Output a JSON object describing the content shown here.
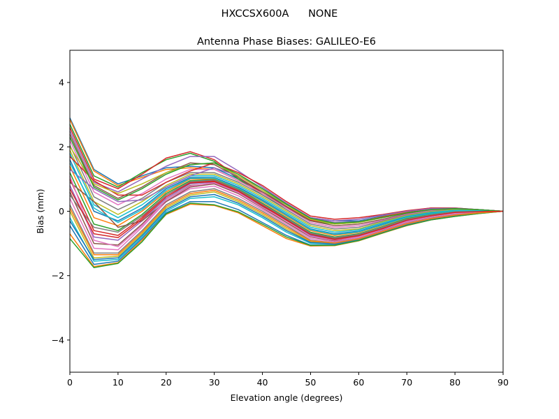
{
  "suptitle": "HXCCSX600A      NONE",
  "chart_data": {
    "type": "line",
    "title": "Antenna Phase Biases: GALILEO-E6",
    "xlabel": "Elevation angle (degrees)",
    "ylabel": "Bias (mm)",
    "xlim": [
      0,
      90
    ],
    "ylim": [
      -5,
      5
    ],
    "x": [
      0,
      5,
      10,
      15,
      20,
      25,
      30,
      35,
      40,
      45,
      50,
      55,
      60,
      65,
      70,
      75,
      80,
      85,
      90
    ],
    "x_ticks": [
      0,
      10,
      20,
      30,
      40,
      50,
      60,
      70,
      80,
      90
    ],
    "y_ticks": [
      -4,
      -2,
      0,
      2,
      4
    ],
    "x_tick_labels": [
      "0",
      "10",
      "20",
      "30",
      "40",
      "50",
      "60",
      "70",
      "80",
      "90"
    ],
    "y_tick_labels": [
      "−4",
      "−2",
      "0",
      "2",
      "4"
    ],
    "grid": false,
    "palette": [
      "#1f77b4",
      "#ff7f0e",
      "#2ca02c",
      "#d62728",
      "#9467bd",
      "#8c564b",
      "#e377c2",
      "#7f7f7f",
      "#bcbd22",
      "#17becf"
    ],
    "series": [
      {
        "values": [
          2.9,
          1.3,
          0.85,
          1.1,
          1.35,
          1.4,
          1.35,
          1.0,
          0.6,
          0.2,
          -0.2,
          -0.3,
          -0.3,
          -0.15,
          0.0,
          0.1,
          0.1,
          0.05,
          0.0
        ]
      },
      {
        "values": [
          2.85,
          1.25,
          0.8,
          1.05,
          1.3,
          1.35,
          1.3,
          0.95,
          0.55,
          0.15,
          -0.25,
          -0.35,
          -0.33,
          -0.17,
          -0.02,
          0.08,
          0.09,
          0.05,
          0.0
        ]
      },
      {
        "values": [
          2.7,
          1.1,
          0.75,
          1.2,
          1.6,
          1.8,
          1.55,
          1.0,
          0.5,
          0.1,
          -0.3,
          -0.4,
          -0.35,
          -0.2,
          -0.05,
          0.05,
          0.08,
          0.05,
          0.0
        ]
      },
      {
        "values": [
          2.6,
          1.0,
          0.7,
          1.15,
          1.65,
          1.85,
          1.6,
          1.05,
          0.55,
          0.12,
          -0.28,
          -0.38,
          -0.34,
          -0.18,
          -0.04,
          0.06,
          0.08,
          0.05,
          0.0
        ]
      },
      {
        "values": [
          2.5,
          0.9,
          0.6,
          1.0,
          1.4,
          1.7,
          1.7,
          1.25,
          0.75,
          0.25,
          -0.2,
          -0.35,
          -0.32,
          -0.2,
          -0.06,
          0.05,
          0.08,
          0.05,
          0.0
        ]
      },
      {
        "values": [
          2.4,
          0.8,
          0.4,
          0.75,
          1.2,
          1.5,
          1.45,
          1.05,
          0.6,
          0.15,
          -0.3,
          -0.45,
          -0.4,
          -0.25,
          -0.08,
          0.04,
          0.07,
          0.04,
          0.0
        ]
      },
      {
        "values": [
          2.2,
          0.6,
          0.2,
          0.55,
          1.0,
          1.3,
          1.3,
          0.95,
          0.55,
          0.1,
          -0.35,
          -0.5,
          -0.45,
          -0.28,
          -0.1,
          0.02,
          0.06,
          0.04,
          0.0
        ]
      },
      {
        "values": [
          2.05,
          0.45,
          0.05,
          0.4,
          0.9,
          1.2,
          1.2,
          0.9,
          0.5,
          0.05,
          -0.4,
          -0.55,
          -0.5,
          -0.3,
          -0.12,
          0.0,
          0.05,
          0.03,
          0.0
        ]
      },
      {
        "values": [
          1.9,
          0.3,
          -0.1,
          0.3,
          0.8,
          1.15,
          1.15,
          0.85,
          0.45,
          0.0,
          -0.45,
          -0.6,
          -0.55,
          -0.33,
          -0.14,
          -0.02,
          0.04,
          0.03,
          0.0
        ]
      },
      {
        "values": [
          1.8,
          0.2,
          -0.2,
          0.2,
          0.75,
          1.1,
          1.1,
          0.8,
          0.4,
          -0.05,
          -0.5,
          -0.65,
          -0.58,
          -0.36,
          -0.16,
          -0.04,
          0.03,
          0.02,
          0.0
        ]
      },
      {
        "values": [
          1.6,
          0.0,
          -0.3,
          0.1,
          0.7,
          1.05,
          1.05,
          0.75,
          0.35,
          -0.1,
          -0.55,
          -0.7,
          -0.62,
          -0.4,
          -0.18,
          -0.06,
          0.02,
          0.02,
          0.0
        ]
      },
      {
        "values": [
          1.4,
          -0.2,
          -0.45,
          0.0,
          0.6,
          1.0,
          1.0,
          0.7,
          0.3,
          -0.15,
          -0.6,
          -0.75,
          -0.66,
          -0.44,
          -0.2,
          -0.08,
          0.01,
          0.01,
          0.0
        ]
      },
      {
        "values": [
          1.2,
          -0.4,
          -0.6,
          -0.1,
          0.55,
          0.95,
          0.98,
          0.68,
          0.25,
          -0.2,
          -0.65,
          -0.8,
          -0.7,
          -0.48,
          -0.23,
          -0.1,
          0.0,
          0.01,
          0.0
        ]
      },
      {
        "values": [
          1.0,
          -0.6,
          -0.75,
          -0.2,
          0.5,
          0.9,
          0.95,
          0.65,
          0.2,
          -0.25,
          -0.7,
          -0.85,
          -0.74,
          -0.52,
          -0.26,
          -0.12,
          -0.02,
          0.0,
          0.0
        ]
      },
      {
        "values": [
          0.8,
          -0.8,
          -0.9,
          -0.3,
          0.4,
          0.85,
          0.9,
          0.6,
          0.15,
          -0.3,
          -0.75,
          -0.9,
          -0.78,
          -0.55,
          -0.3,
          -0.15,
          -0.05,
          -0.01,
          0.0
        ]
      },
      {
        "values": [
          0.6,
          -1.0,
          -1.05,
          -0.4,
          0.35,
          0.8,
          0.85,
          0.55,
          0.1,
          -0.35,
          -0.8,
          -0.92,
          -0.8,
          -0.58,
          -0.33,
          -0.17,
          -0.07,
          -0.02,
          0.0
        ]
      },
      {
        "values": [
          0.4,
          -1.15,
          -1.2,
          -0.5,
          0.3,
          0.7,
          0.78,
          0.48,
          0.05,
          -0.4,
          -0.85,
          -0.95,
          -0.83,
          -0.6,
          -0.36,
          -0.2,
          -0.09,
          -0.03,
          0.0
        ]
      },
      {
        "values": [
          0.2,
          -1.3,
          -1.3,
          -0.6,
          0.2,
          0.6,
          0.7,
          0.4,
          0.0,
          -0.45,
          -0.9,
          -0.98,
          -0.85,
          -0.62,
          -0.38,
          -0.22,
          -0.11,
          -0.04,
          0.0
        ]
      },
      {
        "values": [
          0.0,
          -1.45,
          -1.4,
          -0.7,
          0.1,
          0.5,
          0.6,
          0.3,
          -0.1,
          -0.55,
          -0.95,
          -1.0,
          -0.87,
          -0.64,
          -0.4,
          -0.24,
          -0.13,
          -0.05,
          0.0
        ]
      },
      {
        "values": [
          -0.2,
          -1.55,
          -1.5,
          -0.8,
          0.0,
          0.4,
          0.45,
          0.2,
          -0.2,
          -0.65,
          -1.0,
          -1.02,
          -0.88,
          -0.65,
          -0.42,
          -0.25,
          -0.14,
          -0.06,
          0.0
        ]
      },
      {
        "values": [
          -0.45,
          -1.65,
          -1.55,
          -0.85,
          -0.05,
          0.3,
          0.3,
          0.05,
          -0.35,
          -0.75,
          -1.05,
          -1.05,
          -0.9,
          -0.66,
          -0.43,
          -0.26,
          -0.15,
          -0.06,
          0.0
        ]
      },
      {
        "values": [
          -0.7,
          -1.72,
          -1.6,
          -0.9,
          -0.1,
          0.22,
          0.18,
          -0.05,
          -0.45,
          -0.85,
          -1.08,
          -1.07,
          -0.92,
          -0.68,
          -0.45,
          -0.27,
          -0.16,
          -0.07,
          0.0
        ]
      },
      {
        "values": [
          -0.85,
          -1.75,
          -1.62,
          -0.95,
          -0.08,
          0.25,
          0.2,
          -0.02,
          -0.4,
          -0.8,
          -1.06,
          -1.06,
          -0.91,
          -0.67,
          -0.44,
          -0.27,
          -0.16,
          -0.07,
          0.0
        ]
      },
      {
        "values": [
          1.7,
          0.95,
          0.5,
          0.5,
          0.9,
          1.25,
          1.5,
          1.2,
          0.8,
          0.3,
          -0.15,
          -0.25,
          -0.2,
          -0.1,
          0.02,
          0.1,
          0.1,
          0.05,
          0.0
        ]
      },
      {
        "values": [
          1.3,
          0.7,
          0.3,
          0.35,
          0.75,
          1.1,
          1.35,
          1.1,
          0.7,
          0.25,
          -0.2,
          -0.3,
          -0.25,
          -0.12,
          0.0,
          0.08,
          0.09,
          0.05,
          0.0
        ]
      },
      {
        "values": [
          0.9,
          0.3,
          -0.5,
          -0.3,
          0.3,
          0.75,
          0.85,
          0.55,
          0.15,
          -0.25,
          -0.7,
          -0.85,
          -0.72,
          -0.5,
          -0.27,
          -0.13,
          -0.04,
          -0.01,
          0.0
        ]
      },
      {
        "values": [
          1.1,
          -0.9,
          -1.1,
          -0.45,
          0.35,
          0.78,
          0.88,
          0.58,
          0.12,
          -0.3,
          -0.78,
          -0.9,
          -0.8,
          -0.56,
          -0.32,
          -0.16,
          -0.06,
          -0.02,
          0.0
        ]
      },
      {
        "values": [
          0.5,
          -0.5,
          -0.65,
          -0.15,
          0.5,
          0.92,
          0.97,
          0.67,
          0.22,
          -0.22,
          -0.68,
          -0.82,
          -0.72,
          -0.5,
          -0.25,
          -0.11,
          -0.01,
          0.0,
          0.0
        ]
      },
      {
        "values": [
          2.0,
          0.85,
          0.55,
          0.85,
          1.2,
          1.45,
          1.5,
          1.1,
          0.65,
          0.2,
          -0.25,
          -0.4,
          -0.35,
          -0.2,
          -0.05,
          0.05,
          0.07,
          0.04,
          0.0
        ]
      },
      {
        "values": [
          1.5,
          0.1,
          -0.35,
          0.05,
          0.65,
          1.02,
          1.03,
          0.72,
          0.32,
          -0.12,
          -0.57,
          -0.72,
          -0.64,
          -0.42,
          -0.19,
          -0.07,
          0.02,
          0.02,
          0.0
        ]
      },
      {
        "values": [
          -0.3,
          -1.5,
          -1.45,
          -0.75,
          0.05,
          0.45,
          0.52,
          0.25,
          -0.15,
          -0.6,
          -0.97,
          -1.01,
          -0.87,
          -0.64,
          -0.41,
          -0.24,
          -0.13,
          -0.05,
          0.0
        ]
      },
      {
        "values": [
          0.1,
          -1.35,
          -1.35,
          -0.65,
          0.15,
          0.55,
          0.65,
          0.35,
          -0.05,
          -0.5,
          -0.92,
          -0.99,
          -0.86,
          -0.63,
          -0.39,
          -0.23,
          -0.12,
          -0.05,
          0.0
        ]
      },
      {
        "values": [
          2.3,
          0.75,
          0.35,
          0.7,
          1.15,
          1.45,
          1.5,
          1.15,
          0.7,
          0.22,
          -0.22,
          -0.37,
          -0.33,
          -0.19,
          -0.05,
          0.05,
          0.08,
          0.05,
          0.0
        ]
      },
      {
        "values": [
          0.7,
          -0.7,
          -0.82,
          -0.25,
          0.45,
          0.88,
          0.92,
          0.62,
          0.18,
          -0.28,
          -0.72,
          -0.88,
          -0.76,
          -0.54,
          -0.28,
          -0.14,
          -0.04,
          -0.01,
          0.0
        ]
      }
    ]
  }
}
